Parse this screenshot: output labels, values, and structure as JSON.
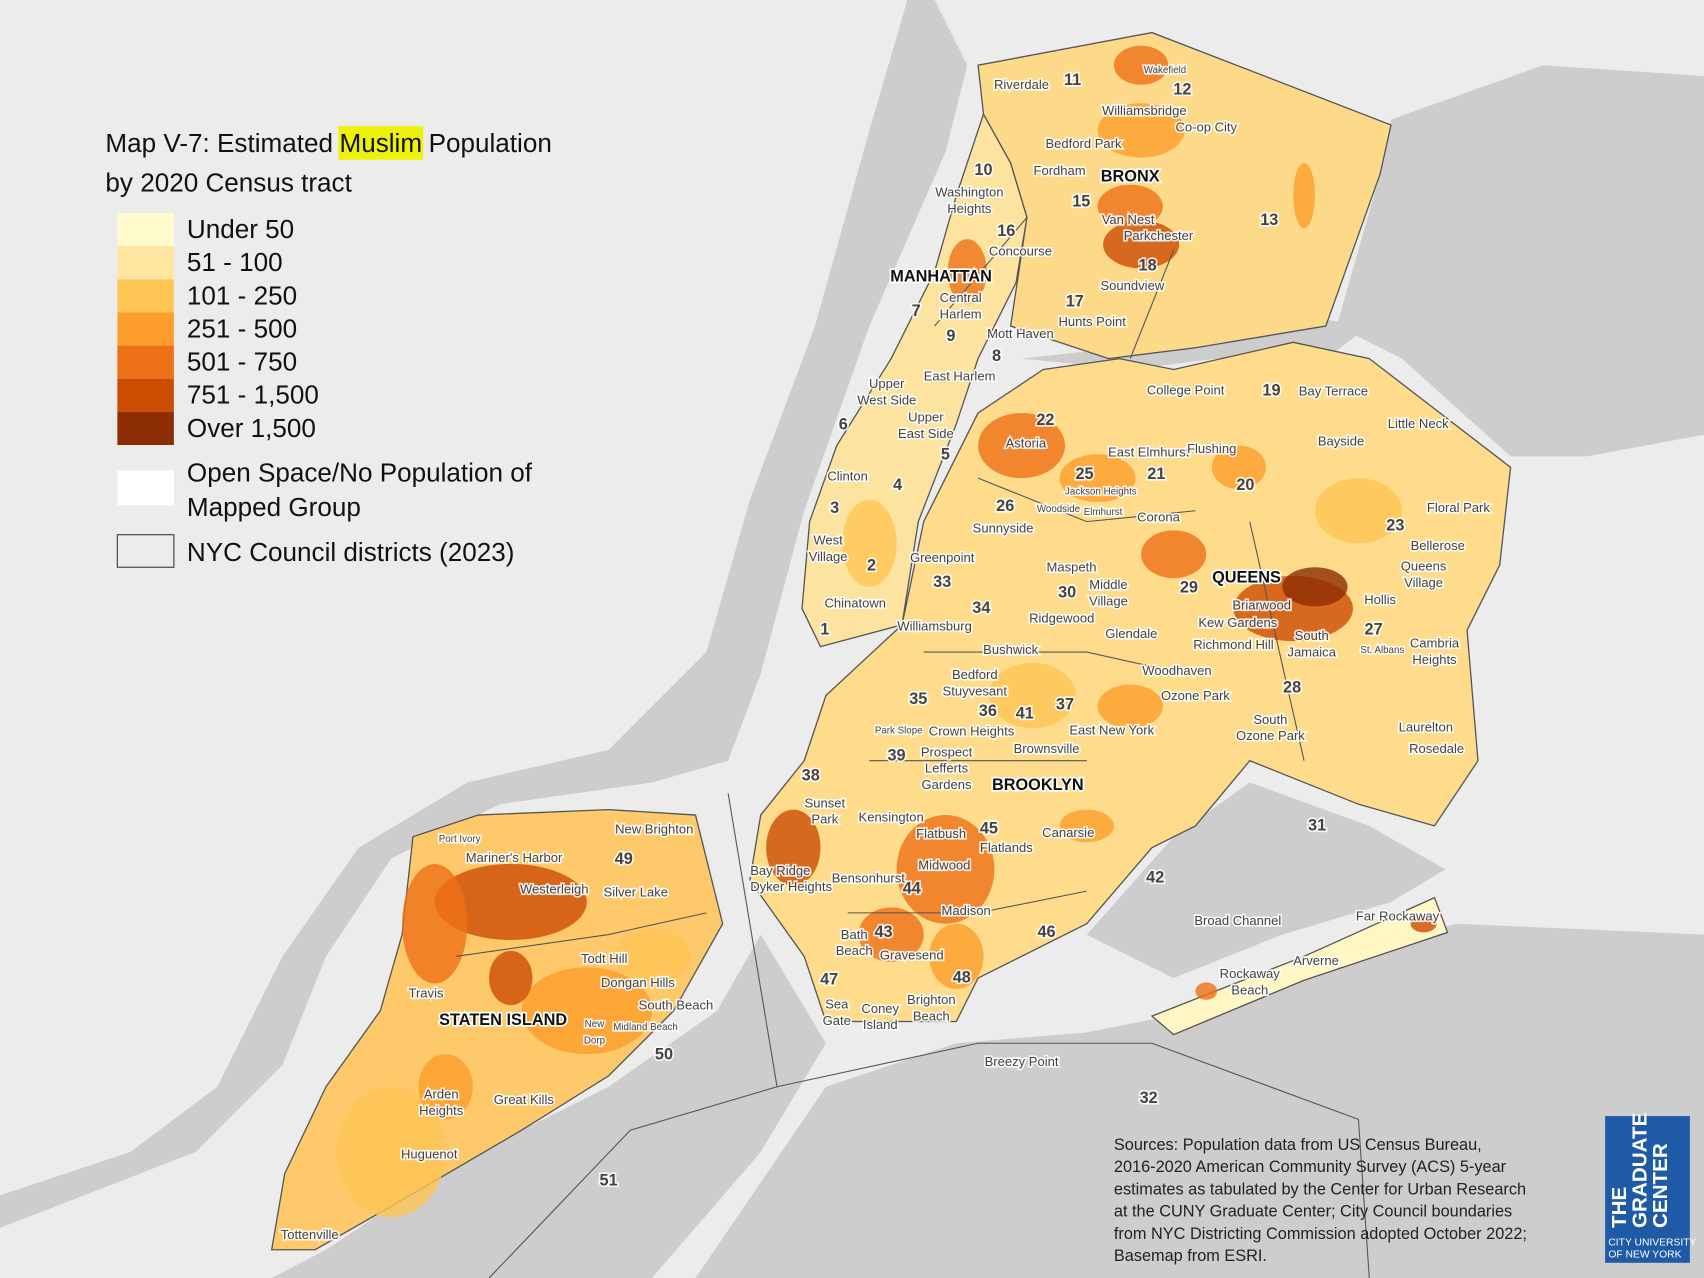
{
  "title": {
    "lead": "Map V-7: Estimated",
    "highlight": "Muslim",
    "rest": "Population",
    "line2": "by 2020 Census tract"
  },
  "legend": {
    "items": [
      {
        "label": "Under 50",
        "color": "#fffbcc"
      },
      {
        "label": "51 - 100",
        "color": "#fee5a0"
      },
      {
        "label": "101 - 250",
        "color": "#fec654"
      },
      {
        "label": "251 - 500",
        "color": "#fd9d2c"
      },
      {
        "label": "501 - 750",
        "color": "#ed7017"
      },
      {
        "label": "751 - 1,500",
        "color": "#cc4c02"
      },
      {
        "label": "Over 1,500",
        "color": "#8c2d04"
      }
    ],
    "open_space": [
      "Open Space/No Population of",
      "Mapped Group"
    ],
    "districts": "NYC Council districts (2023)"
  },
  "boroughs": [
    "MANHATTAN",
    "BRONX",
    "QUEENS",
    "BROOKLYN",
    "STATEN ISLAND"
  ],
  "districts": [
    "11",
    "12",
    "10",
    "15",
    "16",
    "13",
    "18",
    "17",
    "7",
    "9",
    "8",
    "6",
    "22",
    "5",
    "4",
    "25",
    "21",
    "20",
    "19",
    "26",
    "3",
    "23",
    "2",
    "33",
    "30",
    "29",
    "34",
    "1",
    "27",
    "35",
    "36",
    "41",
    "37",
    "28",
    "39",
    "38",
    "45",
    "31",
    "42",
    "44",
    "43",
    "46",
    "47",
    "48",
    "49",
    "50",
    "51",
    "32"
  ],
  "places": [
    "Riverdale",
    "Wakefield",
    "Williamsbridge",
    "Co-op City",
    "Bedford Park",
    "Fordham",
    [
      "Washington",
      "Heights"
    ],
    "Van Nest",
    "Parkchester",
    "Concourse",
    "Soundview",
    [
      "Central",
      "Harlem"
    ],
    "Hunts Point",
    "Mott Haven",
    "East Harlem",
    [
      "Upper",
      "West Side"
    ],
    [
      "Upper",
      "East Side"
    ],
    "College Point",
    "Bay Terrace",
    "Little Neck",
    "Astoria",
    "East Elmhurst",
    "Flushing",
    "Bayside",
    "Clinton",
    "Jackson Heights",
    "Woodside",
    "Elmhurst",
    "Corona",
    "Floral Park",
    "Sunnyside",
    [
      "West",
      "Village"
    ],
    "Bellerose",
    "Greenpoint",
    "Maspeth",
    [
      "Middle",
      "Village"
    ],
    [
      "Queens",
      "Village"
    ],
    "Briarwood",
    "Hollis",
    "Chinatown",
    "Ridgewood",
    "Glendale",
    "Williamsburg",
    "Kew Gardens",
    [
      "South",
      "Jamaica"
    ],
    "St. Albans",
    [
      "Cambria",
      "Heights"
    ],
    "Richmond Hill",
    "Bushwick",
    "Woodhaven",
    [
      "Bedford",
      "Stuyvesant"
    ],
    "Ozone Park",
    "Park Slope",
    "Crown Heights",
    "East New York",
    "Laurelton",
    [
      "South",
      "Ozone Park"
    ],
    [
      "Prospect",
      "Lefferts",
      "Gardens"
    ],
    "Brownsville",
    "Rosedale",
    [
      "Sunset",
      "Park"
    ],
    "Kensington",
    "Flatbush",
    "Canarsie",
    "Flatlands",
    "Bay Ridge",
    "Midwood",
    "Dyker Heights",
    "Bensonhurst",
    "Madison",
    "Broad Channel",
    "Far Rockaway",
    [
      "Bath",
      "Beach"
    ],
    "Gravesend",
    "Arverne",
    [
      "Rockaway",
      "Beach"
    ],
    [
      "Sea",
      "Gate"
    ],
    [
      "Coney",
      "Island"
    ],
    [
      "Brighton",
      "Beach"
    ],
    "Breezy Point",
    "Port Ivory",
    "New Brighton",
    "Mariner's Harbor",
    "Westerleigh",
    "Silver Lake",
    "Todt Hill",
    "Dongan Hills",
    "Travis",
    "South Beach",
    [
      "New",
      "Dorp"
    ],
    "Midland Beach",
    [
      "Arden",
      "Heights"
    ],
    "Great Kills",
    "Huguenot",
    "Tottenville"
  ],
  "sources": [
    "Sources: Population data from US Census Bureau,",
    "2016-2020 American Community Survey (ACS) 5-year",
    "estimates as tabulated by the Center for Urban Research",
    "at the CUNY Graduate Center; City Council boundaries",
    "from NYC Districting Commission adopted October 2022;",
    "Basemap from ESRI."
  ],
  "logo": {
    "name": [
      "THE",
      "GRADUATE",
      "CENTER"
    ],
    "sub": [
      "CITY UNIVERSITY",
      "OF NEW YORK"
    ]
  }
}
